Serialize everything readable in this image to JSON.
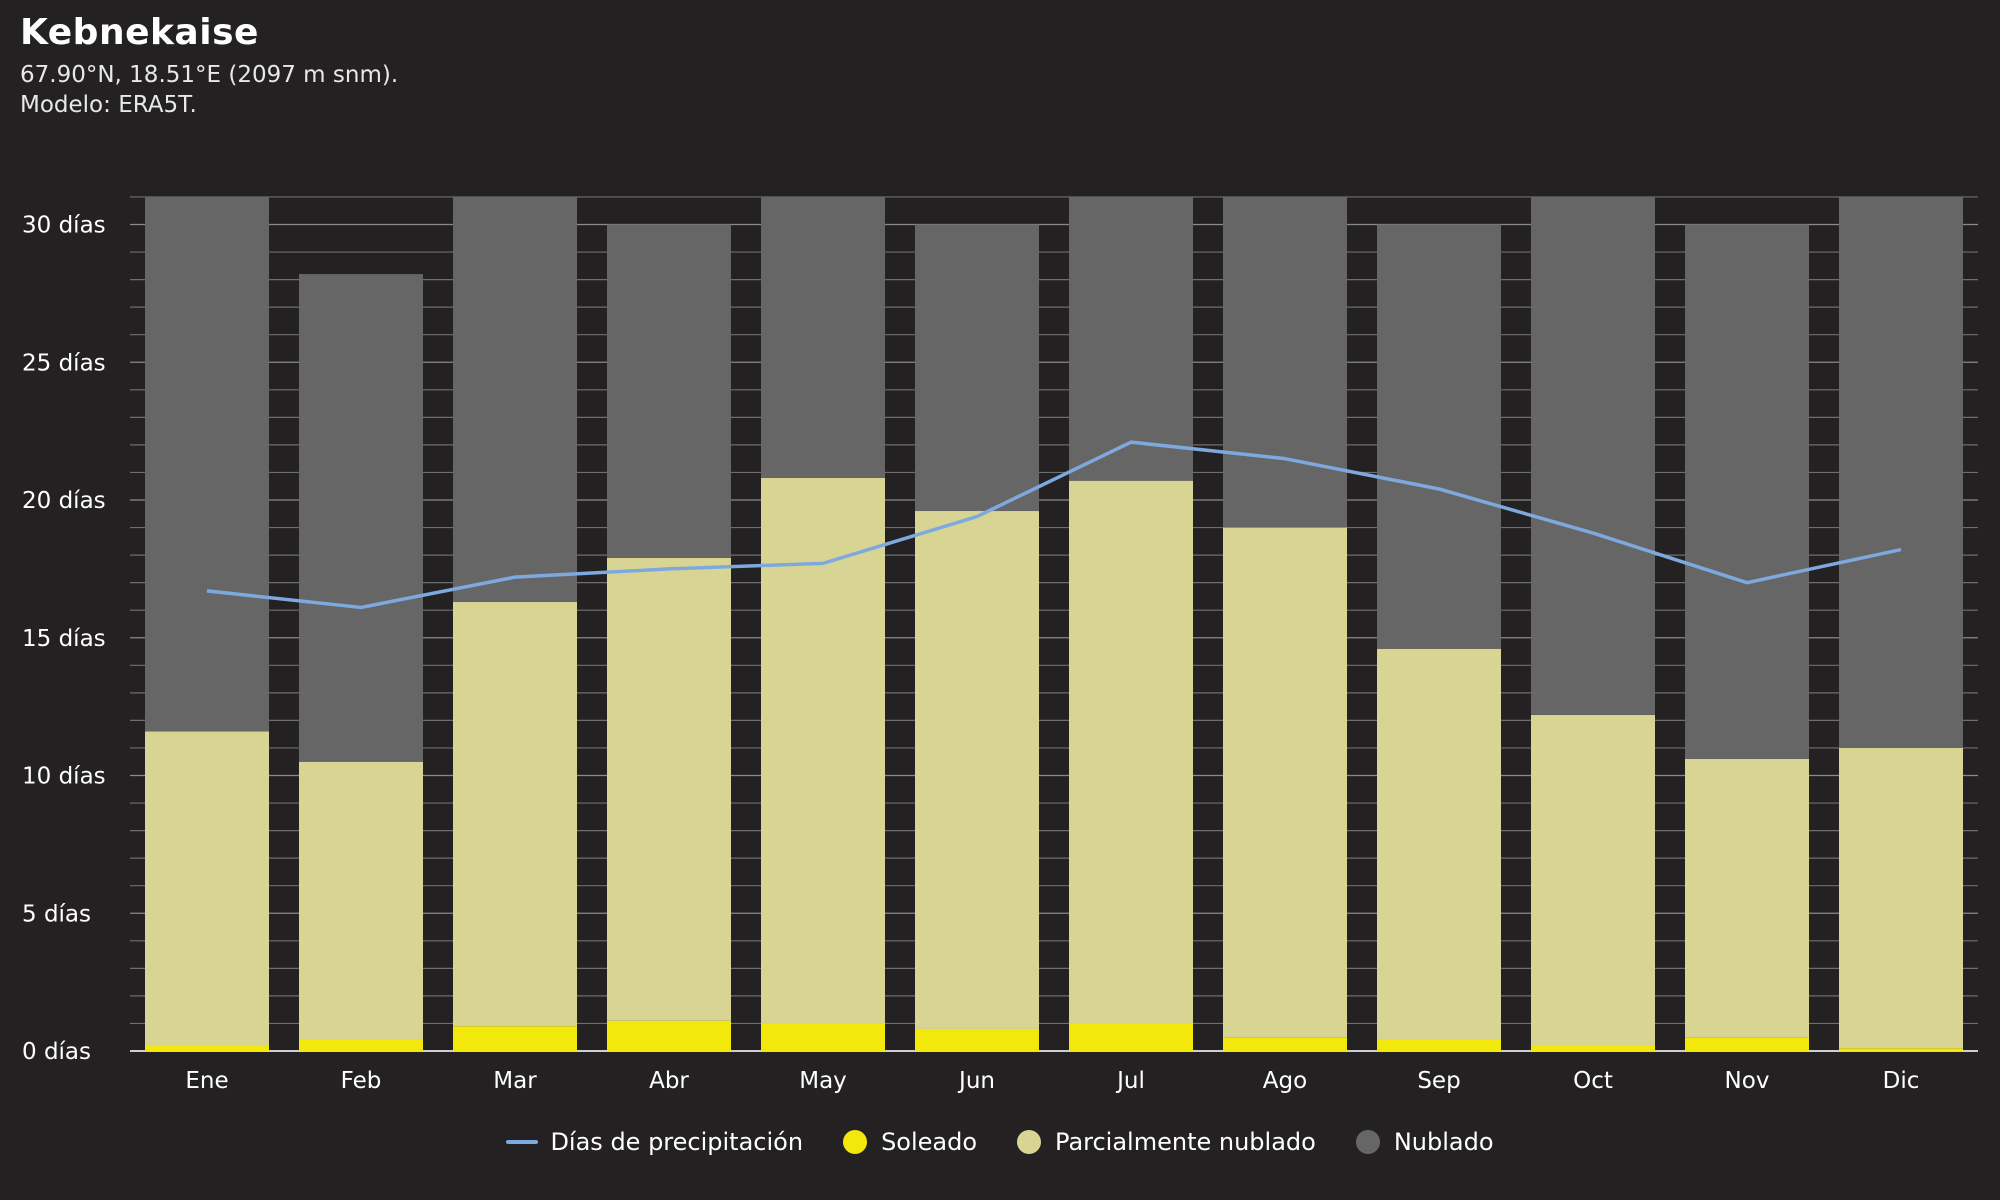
{
  "header": {
    "title": "Kebnekaise",
    "subtitle_1": "67.90°N, 18.51°E (2097 m snm).",
    "subtitle_2": "Modelo: ERA5T."
  },
  "colors": {
    "background": "#242122",
    "sunny": "#f2e80c",
    "partly_cloudy": "#d8d594",
    "overcast": "#666666",
    "precipitation": "#7ea9df",
    "axis_text": "#ffffff",
    "grid": "#6e6e6e"
  },
  "chart_data": {
    "type": "bar",
    "stacked": true,
    "categories": [
      "Ene",
      "Feb",
      "Mar",
      "Abr",
      "May",
      "Jun",
      "Jul",
      "Ago",
      "Sep",
      "Oct",
      "Nov",
      "Dic"
    ],
    "y_tick_labels": [
      "0 días",
      "5 días",
      "10 días",
      "15 días",
      "20 días",
      "25 días",
      "30 días"
    ],
    "ylim": [
      0,
      31
    ],
    "grid": true,
    "legend_position": "bottom",
    "series": [
      {
        "name": "Soleado",
        "values": [
          0.2,
          0.4,
          0.9,
          1.1,
          1.0,
          0.8,
          1.0,
          0.5,
          0.4,
          0.2,
          0.5,
          0.1
        ]
      },
      {
        "name": "Parcialmente nublado",
        "values": [
          11.4,
          10.1,
          15.4,
          16.8,
          19.8,
          18.8,
          19.7,
          18.5,
          14.2,
          12.0,
          10.1,
          10.9
        ]
      },
      {
        "name": "Nublado",
        "values": [
          19.4,
          17.7,
          14.7,
          12.1,
          10.2,
          10.4,
          10.3,
          12.0,
          15.4,
          18.8,
          19.4,
          20.0
        ]
      },
      {
        "name": "Días de precipitación",
        "type": "line",
        "values": [
          16.7,
          16.1,
          17.2,
          17.5,
          17.7,
          19.4,
          22.1,
          21.5,
          20.4,
          18.8,
          17.0,
          18.2
        ]
      }
    ]
  },
  "legend": {
    "precipitation": "Días de precipitación",
    "sunny": "Soleado",
    "partly_cloudy": "Parcialmente nublado",
    "overcast": "Nublado"
  }
}
